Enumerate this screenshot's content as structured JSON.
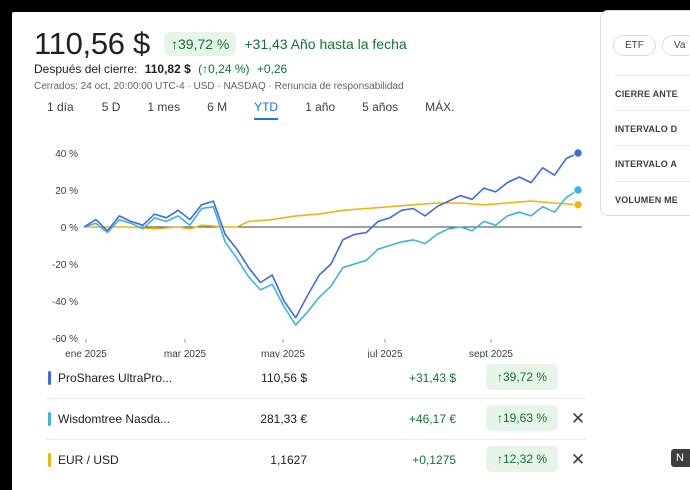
{
  "quote": {
    "price": "110,56 $",
    "pct_change": "↑39,72 %",
    "abs_change": "+31,43 Año hasta la fecha"
  },
  "after_hours": {
    "label": "Después del cierre:",
    "price": "110,82 $",
    "pct": "(↑0,24 %)",
    "change": "+0,26"
  },
  "closed_info": "Cerrados: 24 oct, 20:00:00 UTC-4 · USD · NASDAQ · Renuncia de responsabilidad",
  "tabs": [
    "1 día",
    "5 D",
    "1 mes",
    "6 M",
    "YTD",
    "1 año",
    "5 años",
    "MÁX."
  ],
  "active_tab": "YTD",
  "side_panel": {
    "pills": [
      "ETF",
      "Va"
    ],
    "items": [
      "CIERRE ANTE",
      "INTERVALO D",
      "INTERVALO A",
      "VOLUMEN ME"
    ]
  },
  "overlay_button": "N",
  "chart_data": {
    "type": "line",
    "title": "",
    "x_labels": [
      "ene 2025",
      "mar 2025",
      "may 2025",
      "jul 2025",
      "sept 2025"
    ],
    "y_ticks": [
      "40 %",
      "20 %",
      "0 %",
      "-20 %",
      "-40 %",
      "-60 %"
    ],
    "ylim": [
      -60,
      40
    ],
    "x_range_weeks": [
      0,
      42
    ],
    "series": [
      {
        "name": "ProShares UltraPro...",
        "color": "#4169e1",
        "points": [
          [
            0,
            0
          ],
          [
            1,
            4
          ],
          [
            2,
            -2
          ],
          [
            3,
            6
          ],
          [
            4,
            3
          ],
          [
            5,
            1
          ],
          [
            6,
            7
          ],
          [
            7,
            5
          ],
          [
            8,
            9
          ],
          [
            9,
            4
          ],
          [
            10,
            12
          ],
          [
            11,
            14
          ],
          [
            12,
            -4
          ],
          [
            13,
            -12
          ],
          [
            14,
            -22
          ],
          [
            15,
            -30
          ],
          [
            16,
            -26
          ],
          [
            17,
            -40
          ],
          [
            18,
            -49
          ],
          [
            19,
            -37
          ],
          [
            20,
            -26
          ],
          [
            21,
            -20
          ],
          [
            22,
            -7
          ],
          [
            23,
            -4
          ],
          [
            24,
            -3
          ],
          [
            25,
            3
          ],
          [
            26,
            5
          ],
          [
            27,
            9
          ],
          [
            28,
            10
          ],
          [
            29,
            6
          ],
          [
            30,
            11
          ],
          [
            31,
            14
          ],
          [
            32,
            17
          ],
          [
            33,
            15
          ],
          [
            34,
            21
          ],
          [
            35,
            19
          ],
          [
            36,
            24
          ],
          [
            37,
            27
          ],
          [
            38,
            24
          ],
          [
            39,
            32
          ],
          [
            40,
            28
          ],
          [
            41,
            37
          ],
          [
            42,
            40
          ]
        ]
      },
      {
        "name": "Wisdomtree Nasda...",
        "color": "#3eb4dc",
        "points": [
          [
            0,
            0
          ],
          [
            1,
            2
          ],
          [
            2,
            -3
          ],
          [
            3,
            4
          ],
          [
            4,
            2
          ],
          [
            5,
            -1
          ],
          [
            6,
            5
          ],
          [
            7,
            3
          ],
          [
            8,
            6
          ],
          [
            9,
            1
          ],
          [
            10,
            10
          ],
          [
            11,
            11
          ],
          [
            12,
            -8
          ],
          [
            13,
            -17
          ],
          [
            14,
            -27
          ],
          [
            15,
            -34
          ],
          [
            16,
            -31
          ],
          [
            17,
            -43
          ],
          [
            18,
            -53
          ],
          [
            19,
            -46
          ],
          [
            20,
            -38
          ],
          [
            21,
            -32
          ],
          [
            22,
            -22
          ],
          [
            23,
            -20
          ],
          [
            24,
            -18
          ],
          [
            25,
            -12
          ],
          [
            26,
            -10
          ],
          [
            27,
            -8
          ],
          [
            28,
            -7
          ],
          [
            29,
            -9
          ],
          [
            30,
            -4
          ],
          [
            31,
            -1
          ],
          [
            32,
            0
          ],
          [
            33,
            -2
          ],
          [
            34,
            3
          ],
          [
            35,
            1
          ],
          [
            36,
            6
          ],
          [
            37,
            8
          ],
          [
            38,
            6
          ],
          [
            39,
            11
          ],
          [
            40,
            8
          ],
          [
            41,
            16
          ],
          [
            42,
            20
          ]
        ]
      },
      {
        "name": "EUR / USD",
        "color": "#f2b40f",
        "points": [
          [
            0,
            0
          ],
          [
            2,
            0
          ],
          [
            4,
            0
          ],
          [
            6,
            -1
          ],
          [
            8,
            0
          ],
          [
            9,
            -1
          ],
          [
            10,
            1
          ],
          [
            12,
            0
          ],
          [
            13,
            0
          ],
          [
            14,
            3
          ],
          [
            16,
            4
          ],
          [
            18,
            6
          ],
          [
            20,
            7
          ],
          [
            22,
            9
          ],
          [
            24,
            10
          ],
          [
            26,
            11
          ],
          [
            28,
            12
          ],
          [
            30,
            13
          ],
          [
            32,
            13
          ],
          [
            34,
            12
          ],
          [
            36,
            13
          ],
          [
            38,
            14
          ],
          [
            40,
            13
          ],
          [
            42,
            12
          ]
        ]
      }
    ],
    "baseline": 0
  },
  "legend": [
    {
      "name": "ProShares UltraPro...",
      "price": "110,56 $",
      "change": "+31,43 $",
      "pct": "↑39,72 %",
      "color": "#4169e1",
      "removable": false
    },
    {
      "name": "Wisdomtree Nasda...",
      "price": "281,33 €",
      "change": "+46,17 €",
      "pct": "↑19,63 %",
      "color": "#3eb4dc",
      "removable": true
    },
    {
      "name": "EUR / USD",
      "price": "1,1627",
      "change": "+0,1275",
      "pct": "↑12,32 %",
      "color": "#f2b40f",
      "removable": true
    }
  ]
}
